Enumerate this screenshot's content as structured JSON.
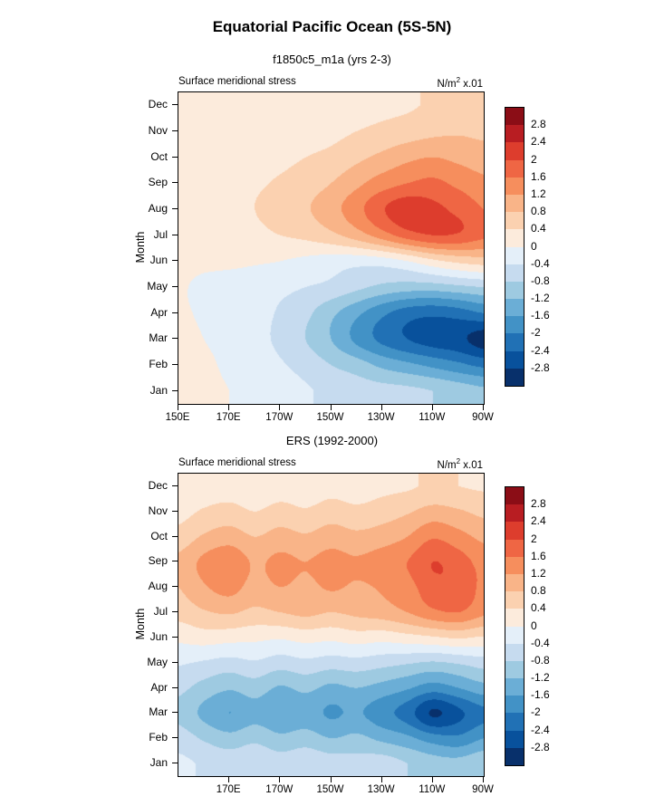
{
  "page": {
    "title": "Equatorial Pacific Ocean (5S-5N)"
  },
  "colorbar": {
    "levels": [
      -2.8,
      -2.4,
      -2,
      -1.6,
      -1.2,
      -0.8,
      -0.4,
      0,
      0.4,
      0.8,
      1.2,
      1.6,
      2,
      2.4,
      2.8
    ],
    "tick_labels_top_to_bottom": [
      "2.8",
      "2.4",
      "2",
      "1.6",
      "1.2",
      "0.8",
      "0.4",
      "0",
      "-0.4",
      "-0.8",
      "-1.2",
      "-1.6",
      "-2",
      "-2.4",
      "-2.8"
    ],
    "band_colors_low_to_high": [
      "#08306b",
      "#08519c",
      "#2171b5",
      "#4292c6",
      "#6baed6",
      "#9ecae1",
      "#c6dbef",
      "#e4eff9",
      "#fcebdc",
      "#fbd1b0",
      "#f9b488",
      "#f68e5d",
      "#ef6644",
      "#dd3d2d",
      "#b81d22",
      "#8b0d16"
    ]
  },
  "chart_data": [
    {
      "type": "heatmap",
      "title": "f1850c5_m1a (yrs 2-3)",
      "field_label": "Surface meridional stress",
      "units": {
        "pre": "N/m",
        "sup": "2",
        "post": " x.01"
      },
      "ylabel": "Month",
      "x_tick_labels": [
        "150E",
        "170E",
        "170W",
        "150W",
        "130W",
        "110W",
        "90W"
      ],
      "x_tick_lons": [
        150,
        170,
        190,
        210,
        230,
        250,
        270
      ],
      "x_range_lon": [
        150,
        270
      ],
      "y_categories": [
        "Jan",
        "Feb",
        "Mar",
        "Apr",
        "May",
        "Jun",
        "Jul",
        "Aug",
        "Sep",
        "Oct",
        "Nov",
        "Dec"
      ],
      "longitudes": [
        150,
        160,
        170,
        180,
        190,
        200,
        210,
        220,
        230,
        240,
        250,
        260,
        270
      ],
      "values_months_by_longitude": [
        [
          0.1,
          0.05,
          0,
          -0.1,
          -0.2,
          -0.35,
          -0.5,
          -0.6,
          -0.65,
          -0.7,
          -0.8,
          -0.95,
          -1.1
        ],
        [
          0.1,
          0.05,
          -0.05,
          -0.15,
          -0.35,
          -0.55,
          -0.8,
          -1.0,
          -1.3,
          -1.5,
          -1.7,
          -1.9,
          -2.1
        ],
        [
          0.1,
          0,
          -0.1,
          -0.25,
          -0.5,
          -0.8,
          -1.2,
          -1.7,
          -2.1,
          -2.4,
          -2.6,
          -2.7,
          -3.0
        ],
        [
          0.05,
          -0.05,
          -0.15,
          -0.25,
          -0.45,
          -0.7,
          -1.1,
          -1.5,
          -1.9,
          -2.2,
          -2.3,
          -2.2,
          -2.0
        ],
        [
          0.05,
          -0.1,
          -0.2,
          -0.25,
          -0.3,
          -0.4,
          -0.5,
          -0.7,
          -0.9,
          -1.0,
          -1.0,
          -0.9,
          -0.8
        ],
        [
          0.1,
          0.1,
          0.1,
          0.05,
          0,
          -0.1,
          -0.2,
          -0.25,
          -0.2,
          0,
          0.3,
          0.5,
          0.6
        ],
        [
          0.15,
          0.2,
          0.25,
          0.3,
          0.4,
          0.5,
          0.7,
          1.0,
          1.4,
          1.8,
          2.0,
          1.95,
          1.7
        ],
        [
          0.2,
          0.25,
          0.3,
          0.4,
          0.55,
          0.75,
          1.05,
          1.45,
          1.95,
          2.25,
          2.1,
          1.9,
          1.6
        ],
        [
          0.2,
          0.25,
          0.3,
          0.35,
          0.45,
          0.6,
          0.8,
          1.1,
          1.4,
          1.6,
          1.7,
          1.5,
          1.3
        ],
        [
          0.2,
          0.2,
          0.2,
          0.25,
          0.3,
          0.4,
          0.5,
          0.7,
          0.9,
          1.1,
          1.2,
          1.1,
          1.0
        ],
        [
          0.15,
          0.15,
          0.15,
          0.2,
          0.2,
          0.25,
          0.3,
          0.4,
          0.5,
          0.6,
          0.7,
          0.75,
          0.7
        ],
        [
          0.1,
          0.1,
          0.1,
          0.1,
          0.1,
          0.15,
          0.2,
          0.25,
          0.3,
          0.35,
          0.45,
          0.5,
          0.5
        ]
      ]
    },
    {
      "type": "heatmap",
      "title": "ERS (1992-2000)",
      "field_label": "Surface meridional stress",
      "units": {
        "pre": "N/m",
        "sup": "2",
        "post": " x.01"
      },
      "ylabel": "Month",
      "x_tick_labels": [
        "170E",
        "170W",
        "150W",
        "130W",
        "110W",
        "90W"
      ],
      "x_tick_lons": [
        170,
        190,
        210,
        230,
        250,
        270
      ],
      "x_range_lon": [
        150,
        270
      ],
      "y_categories": [
        "Jan",
        "Feb",
        "Mar",
        "Apr",
        "May",
        "Jun",
        "Jul",
        "Aug",
        "Sep",
        "Oct",
        "Nov",
        "Dec"
      ],
      "longitudes": [
        150,
        160,
        170,
        180,
        190,
        200,
        210,
        220,
        230,
        240,
        250,
        260,
        270
      ],
      "values_months_by_longitude": [
        [
          -0.3,
          -0.45,
          -0.55,
          -0.45,
          -0.6,
          -0.5,
          -0.6,
          -0.65,
          -0.6,
          -0.8,
          -1.0,
          -1.05,
          -0.85
        ],
        [
          -0.6,
          -0.85,
          -1.05,
          -0.9,
          -1.1,
          -1.0,
          -1.2,
          -1.1,
          -1.3,
          -1.5,
          -1.8,
          -1.9,
          -1.6
        ],
        [
          -0.9,
          -1.3,
          -1.6,
          -1.35,
          -1.55,
          -1.45,
          -1.65,
          -1.55,
          -1.85,
          -2.2,
          -2.85,
          -2.5,
          -2.1
        ],
        [
          -0.7,
          -0.95,
          -1.15,
          -1.0,
          -1.25,
          -1.1,
          -1.3,
          -1.2,
          -1.35,
          -1.55,
          -1.8,
          -1.6,
          -1.35
        ],
        [
          -0.35,
          -0.45,
          -0.55,
          -0.45,
          -0.6,
          -0.5,
          -0.6,
          -0.55,
          -0.65,
          -0.75,
          -0.85,
          -0.75,
          -0.6
        ],
        [
          0.1,
          0.2,
          0.15,
          0.1,
          0.05,
          0.15,
          0.1,
          0.2,
          0.15,
          0.25,
          0.35,
          0.45,
          0.35
        ],
        [
          0.55,
          0.75,
          0.85,
          0.7,
          0.8,
          0.9,
          0.8,
          0.9,
          1.0,
          1.2,
          1.5,
          1.6,
          1.3
        ],
        [
          0.8,
          1.15,
          1.35,
          1.05,
          1.2,
          1.1,
          1.25,
          1.15,
          1.25,
          1.45,
          1.85,
          1.9,
          1.5
        ],
        [
          0.9,
          1.3,
          1.5,
          1.15,
          1.3,
          1.2,
          1.35,
          1.25,
          1.4,
          1.6,
          2.0,
          1.8,
          1.45
        ],
        [
          0.55,
          0.85,
          1.0,
          0.8,
          0.95,
          0.85,
          1.0,
          0.9,
          1.0,
          1.2,
          1.55,
          1.35,
          1.1
        ],
        [
          0.25,
          0.45,
          0.55,
          0.4,
          0.55,
          0.45,
          0.6,
          0.5,
          0.6,
          0.75,
          0.95,
          0.85,
          0.7
        ],
        [
          0.05,
          0.15,
          0.2,
          0.1,
          0.2,
          0.15,
          0.25,
          0.2,
          0.3,
          0.35,
          0.45,
          0.4,
          0.35
        ]
      ]
    }
  ]
}
